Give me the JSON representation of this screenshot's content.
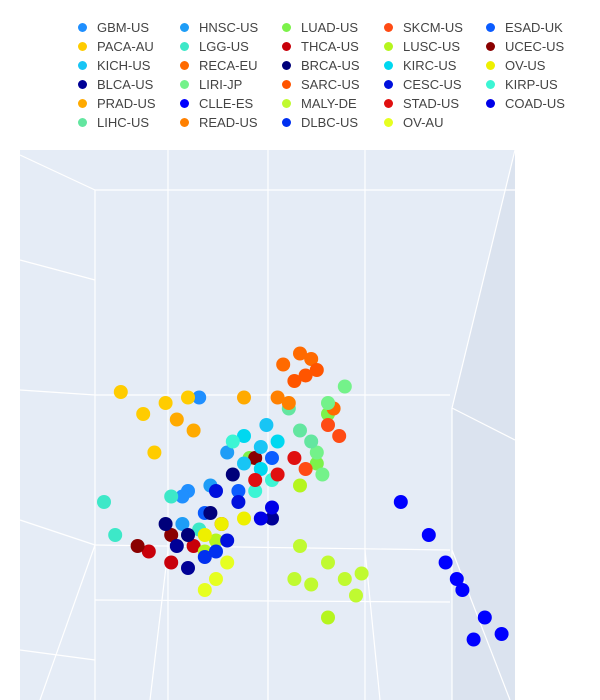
{
  "chart_data": {
    "type": "scatter",
    "title": "",
    "legend_placement": "top",
    "grid": true,
    "series": [
      {
        "name": "GBM-US",
        "color": "#1f8fff",
        "points": [
          [
            0.32,
            0.45
          ],
          [
            0.3,
            0.62
          ],
          [
            0.29,
            0.63
          ]
        ]
      },
      {
        "name": "HNSC-US",
        "color": "#1e9df7",
        "points": [
          [
            0.34,
            0.61
          ],
          [
            0.37,
            0.55
          ],
          [
            0.29,
            0.68
          ]
        ]
      },
      {
        "name": "LUAD-US",
        "color": "#7cf24a",
        "points": [
          [
            0.41,
            0.56
          ],
          [
            0.55,
            0.48
          ],
          [
            0.53,
            0.57
          ]
        ]
      },
      {
        "name": "SKCM-US",
        "color": "#ff4b14",
        "points": [
          [
            0.55,
            0.5
          ],
          [
            0.57,
            0.52
          ],
          [
            0.51,
            0.58
          ]
        ]
      },
      {
        "name": "ESAD-UK",
        "color": "#0b5cff",
        "points": [
          [
            0.39,
            0.62
          ],
          [
            0.45,
            0.56
          ],
          [
            0.33,
            0.66
          ]
        ]
      },
      {
        "name": "PACA-AU",
        "color": "#ffcc00",
        "points": [
          [
            0.18,
            0.44
          ],
          [
            0.22,
            0.48
          ],
          [
            0.26,
            0.46
          ],
          [
            0.3,
            0.45
          ],
          [
            0.24,
            0.55
          ]
        ]
      },
      {
        "name": "LGG-US",
        "color": "#3de8c8",
        "points": [
          [
            0.15,
            0.64
          ],
          [
            0.27,
            0.63
          ],
          [
            0.32,
            0.69
          ],
          [
            0.17,
            0.7
          ]
        ]
      },
      {
        "name": "THCA-US",
        "color": "#c8000a",
        "points": [
          [
            0.23,
            0.73
          ],
          [
            0.27,
            0.75
          ],
          [
            0.31,
            0.72
          ],
          [
            0.36,
            0.68
          ]
        ]
      },
      {
        "name": "LUSC-US",
        "color": "#b5f51e",
        "points": [
          [
            0.35,
            0.71
          ],
          [
            0.33,
            0.73
          ],
          [
            0.5,
            0.61
          ],
          [
            0.55,
            0.85
          ]
        ]
      },
      {
        "name": "UCEC-US",
        "color": "#8a0000",
        "points": [
          [
            0.21,
            0.72
          ],
          [
            0.27,
            0.7
          ],
          [
            0.42,
            0.56
          ]
        ]
      },
      {
        "name": "KICH-US",
        "color": "#18c5f5",
        "points": [
          [
            0.43,
            0.54
          ],
          [
            0.4,
            0.57
          ],
          [
            0.44,
            0.5
          ]
        ]
      },
      {
        "name": "RECA-EU",
        "color": "#ff6a00",
        "points": [
          [
            0.47,
            0.39
          ],
          [
            0.5,
            0.37
          ],
          [
            0.52,
            0.38
          ],
          [
            0.56,
            0.47
          ]
        ]
      },
      {
        "name": "BRCA-US",
        "color": "#00007a",
        "points": [
          [
            0.26,
            0.68
          ],
          [
            0.3,
            0.7
          ],
          [
            0.34,
            0.66
          ],
          [
            0.38,
            0.59
          ]
        ]
      },
      {
        "name": "KIRC-US",
        "color": "#00d8f0",
        "points": [
          [
            0.4,
            0.52
          ],
          [
            0.43,
            0.58
          ],
          [
            0.46,
            0.53
          ]
        ]
      },
      {
        "name": "OV-US",
        "color": "#eef000",
        "points": [
          [
            0.36,
            0.68
          ],
          [
            0.4,
            0.67
          ],
          [
            0.33,
            0.7
          ]
        ]
      },
      {
        "name": "BLCA-US",
        "color": "#000096",
        "points": [
          [
            0.28,
            0.72
          ],
          [
            0.3,
            0.76
          ],
          [
            0.45,
            0.67
          ]
        ]
      },
      {
        "name": "LIRI-JP",
        "color": "#74f28a",
        "points": [
          [
            0.55,
            0.46
          ],
          [
            0.58,
            0.43
          ],
          [
            0.53,
            0.55
          ],
          [
            0.54,
            0.59
          ]
        ]
      },
      {
        "name": "SARC-US",
        "color": "#ff5500",
        "points": [
          [
            0.49,
            0.42
          ],
          [
            0.51,
            0.41
          ],
          [
            0.53,
            0.4
          ]
        ]
      },
      {
        "name": "CESC-US",
        "color": "#0010dd",
        "points": [
          [
            0.35,
            0.62
          ],
          [
            0.37,
            0.71
          ],
          [
            0.39,
            0.64
          ]
        ]
      },
      {
        "name": "KIRP-US",
        "color": "#3cf5d4",
        "points": [
          [
            0.38,
            0.53
          ],
          [
            0.42,
            0.62
          ],
          [
            0.45,
            0.6
          ]
        ]
      },
      {
        "name": "PRAD-US",
        "color": "#ffaa00",
        "points": [
          [
            0.28,
            0.49
          ],
          [
            0.31,
            0.51
          ],
          [
            0.4,
            0.45
          ]
        ]
      },
      {
        "name": "CLLE-ES",
        "color": "#0000ff",
        "points": [
          [
            0.68,
            0.64
          ],
          [
            0.73,
            0.7
          ],
          [
            0.76,
            0.75
          ],
          [
            0.79,
            0.8
          ],
          [
            0.83,
            0.85
          ],
          [
            0.86,
            0.88
          ],
          [
            0.81,
            0.89
          ],
          [
            0.78,
            0.78
          ]
        ]
      },
      {
        "name": "MALY-DE",
        "color": "#c0fa30",
        "points": [
          [
            0.5,
            0.72
          ],
          [
            0.55,
            0.75
          ],
          [
            0.52,
            0.79
          ],
          [
            0.58,
            0.78
          ],
          [
            0.61,
            0.77
          ],
          [
            0.6,
            0.81
          ],
          [
            0.49,
            0.78
          ]
        ]
      },
      {
        "name": "STAD-US",
        "color": "#e01010",
        "points": [
          [
            0.42,
            0.6
          ],
          [
            0.46,
            0.59
          ],
          [
            0.49,
            0.56
          ]
        ]
      },
      {
        "name": "COAD-US",
        "color": "#0000e8",
        "points": [
          [
            0.43,
            0.67
          ],
          [
            0.45,
            0.65
          ]
        ]
      },
      {
        "name": "LIHC-US",
        "color": "#63e6a0",
        "points": [
          [
            0.48,
            0.47
          ],
          [
            0.5,
            0.51
          ],
          [
            0.52,
            0.53
          ]
        ]
      },
      {
        "name": "READ-US",
        "color": "#ff8000",
        "points": [
          [
            0.46,
            0.45
          ],
          [
            0.48,
            0.46
          ]
        ]
      },
      {
        "name": "DLBC-US",
        "color": "#0030f0",
        "points": [
          [
            0.33,
            0.74
          ],
          [
            0.35,
            0.73
          ]
        ]
      },
      {
        "name": "OV-AU",
        "color": "#e6ff20",
        "points": [
          [
            0.33,
            0.8
          ],
          [
            0.35,
            0.78
          ],
          [
            0.37,
            0.75
          ]
        ]
      }
    ]
  }
}
